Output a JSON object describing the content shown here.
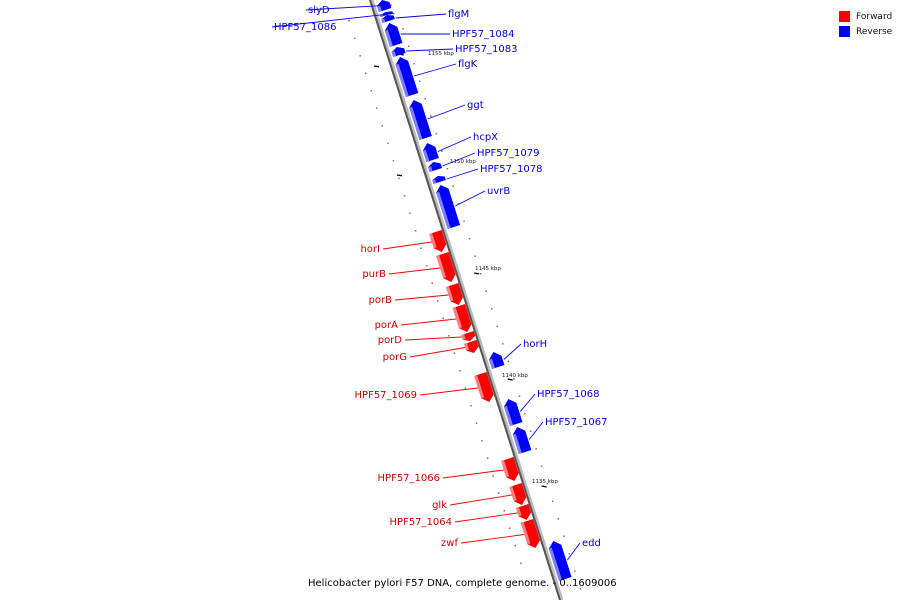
{
  "caption": "Helicobacter pylori F57 DNA, complete genome. - 0..1609006",
  "legend": [
    {
      "label": "Forward",
      "color": "#ff0000"
    },
    {
      "label": "Reverse",
      "color": "#0000ff"
    }
  ],
  "scale_labels": [
    "1155 kbp",
    "1150 kbp",
    "1145 kbp",
    "1140 kbp",
    "1135 kbp"
  ],
  "genes": [
    {
      "name": "slyD",
      "strand": "reverse"
    },
    {
      "name": "HPF57_1086",
      "strand": "reverse"
    },
    {
      "name": "flgM",
      "strand": "reverse"
    },
    {
      "name": "HPF57_1084",
      "strand": "reverse"
    },
    {
      "name": "HPF57_1083",
      "strand": "reverse"
    },
    {
      "name": "flgK",
      "strand": "reverse"
    },
    {
      "name": "ggt",
      "strand": "reverse"
    },
    {
      "name": "hcpX",
      "strand": "reverse"
    },
    {
      "name": "HPF57_1079",
      "strand": "reverse"
    },
    {
      "name": "HPF57_1078",
      "strand": "reverse"
    },
    {
      "name": "uvrB",
      "strand": "reverse"
    },
    {
      "name": "horI",
      "strand": "forward"
    },
    {
      "name": "purB",
      "strand": "forward"
    },
    {
      "name": "porB",
      "strand": "forward"
    },
    {
      "name": "porA",
      "strand": "forward"
    },
    {
      "name": "porD",
      "strand": "forward"
    },
    {
      "name": "porG",
      "strand": "forward"
    },
    {
      "name": "horH",
      "strand": "reverse"
    },
    {
      "name": "HPF57_1069",
      "strand": "forward"
    },
    {
      "name": "HPF57_1068",
      "strand": "reverse"
    },
    {
      "name": "HPF57_1067",
      "strand": "reverse"
    },
    {
      "name": "HPF57_1066",
      "strand": "forward"
    },
    {
      "name": "glk",
      "strand": "forward"
    },
    {
      "name": "HPF57_1064",
      "strand": "forward"
    },
    {
      "name": "zwf",
      "strand": "forward"
    },
    {
      "name": "edd",
      "strand": "reverse"
    }
  ]
}
